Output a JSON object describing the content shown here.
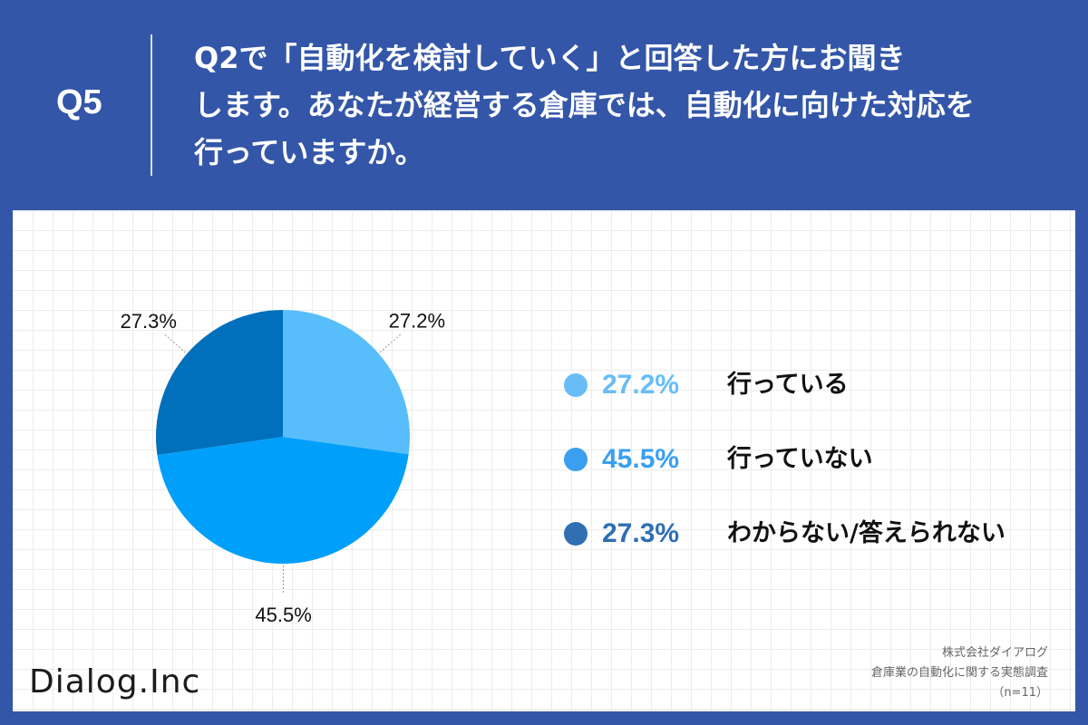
{
  "header": {
    "q_label": "Q5",
    "question_lines": [
      "Q2で「自動化を検討していく」と回答した方にお聞き",
      "します。あなたが経営する倉庫では、自動化に向けた対応を",
      "行っていますか。"
    ]
  },
  "chart_data": {
    "type": "pie",
    "slices": [
      {
        "label": "行っている",
        "value": 27.2,
        "display": "27.2%",
        "color": "#58bdfb"
      },
      {
        "label": "行っていない",
        "value": 45.5,
        "display": "45.5%",
        "color": "#009ffa"
      },
      {
        "label": "わからない/答えられない",
        "value": 27.3,
        "display": "27.3%",
        "color": "#0070bc"
      }
    ],
    "legend_placement": "right"
  },
  "legend_colors": [
    "#68bdf7",
    "#3a9ff1",
    "#2f6fb2"
  ],
  "footer": {
    "logo": "Dialog.Inc",
    "source_lines": [
      "株式会社ダイアログ",
      "倉庫業の自動化に関する実態調査",
      "（n=11）"
    ]
  }
}
